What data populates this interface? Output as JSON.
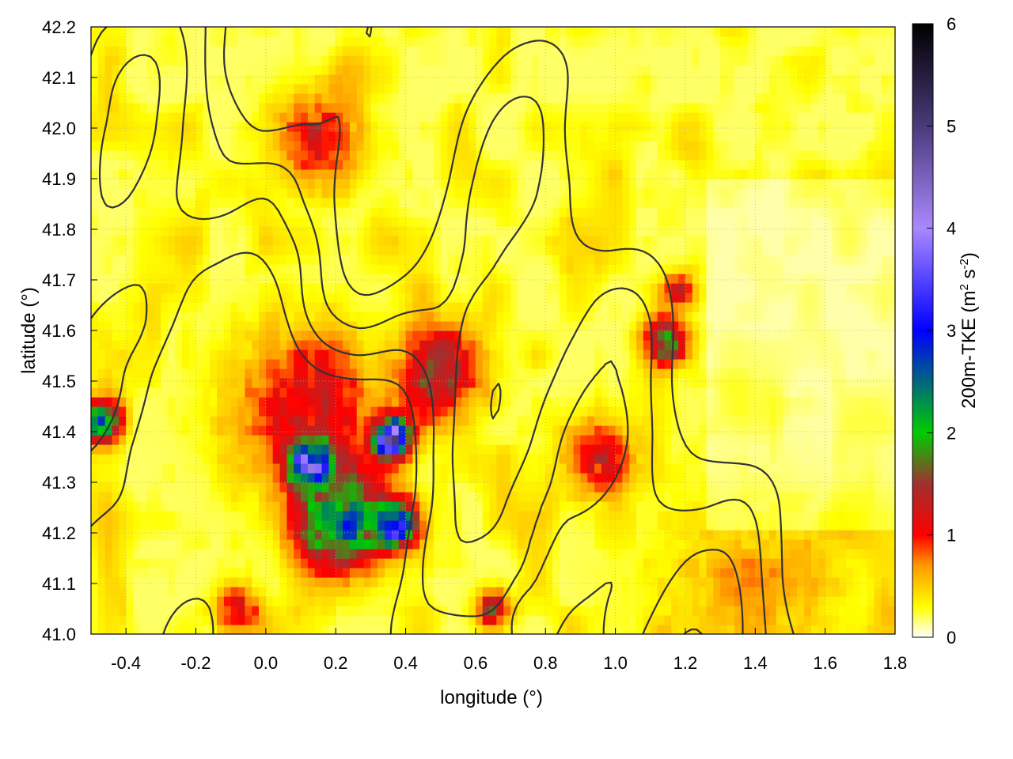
{
  "chart_data": {
    "type": "heatmap",
    "title": "",
    "xlabel": "longitude (°)",
    "ylabel": "latitude (°)",
    "colorbar_label": "200m-TKE (m² s⁻²)",
    "colorbar_label_parts": {
      "base": "200m-TKE (m",
      "sup1": "2",
      "mid": " s",
      "sup2": "-2",
      "end": ")"
    },
    "xlim": [
      -0.5,
      1.8
    ],
    "ylim": [
      41.0,
      42.2
    ],
    "zlim": [
      0,
      6
    ],
    "x_ticks": [
      "-0.4",
      "-0.2",
      "0.0",
      "0.2",
      "0.4",
      "0.6",
      "0.8",
      "1.0",
      "1.2",
      "1.4",
      "1.6",
      "1.8"
    ],
    "x_tick_values": [
      -0.4,
      -0.2,
      0.0,
      0.2,
      0.4,
      0.6,
      0.8,
      1.0,
      1.2,
      1.4,
      1.6,
      1.8
    ],
    "y_ticks": [
      "41.0",
      "41.1",
      "41.2",
      "41.3",
      "41.4",
      "41.5",
      "41.6",
      "41.7",
      "41.8",
      "41.9",
      "42.0",
      "42.1",
      "42.2"
    ],
    "y_tick_values": [
      41.0,
      41.1,
      41.2,
      41.3,
      41.4,
      41.5,
      41.6,
      41.7,
      41.8,
      41.9,
      42.0,
      42.1,
      42.2
    ],
    "colorbar_ticks": [
      "0",
      "1",
      "2",
      "3",
      "4",
      "5",
      "6"
    ],
    "colorbar_tick_values": [
      0,
      1,
      2,
      3,
      4,
      5,
      6
    ],
    "grid": true,
    "contours": "terrain elevation isolines (black)",
    "colormap": [
      {
        "value": 0.0,
        "color": "#ffffff"
      },
      {
        "value": 0.3,
        "color": "#ffff00"
      },
      {
        "value": 0.7,
        "color": "#ff9900"
      },
      {
        "value": 1.0,
        "color": "#ff0000"
      },
      {
        "value": 1.5,
        "color": "#a03030"
      },
      {
        "value": 2.0,
        "color": "#00cc00"
      },
      {
        "value": 3.0,
        "color": "#0000ff"
      },
      {
        "value": 4.0,
        "color": "#aa88ff"
      },
      {
        "value": 5.0,
        "color": "#4a3a7a"
      },
      {
        "value": 6.0,
        "color": "#000000"
      }
    ],
    "hotspots": [
      {
        "lon": 0.22,
        "lat": 41.22,
        "value": 2.2,
        "spread": 0.12
      },
      {
        "lon": 0.12,
        "lat": 41.34,
        "value": 3.0,
        "spread": 0.06
      },
      {
        "lon": 0.36,
        "lat": 41.39,
        "value": 3.8,
        "spread": 0.05
      },
      {
        "lon": 0.37,
        "lat": 41.22,
        "value": 2.6,
        "spread": 0.06
      },
      {
        "lon": 0.5,
        "lat": 41.52,
        "value": 1.2,
        "spread": 0.12
      },
      {
        "lon": -0.47,
        "lat": 41.42,
        "value": 2.4,
        "spread": 0.05
      },
      {
        "lon": 0.15,
        "lat": 41.98,
        "value": 1.0,
        "spread": 0.12
      },
      {
        "lon": 1.15,
        "lat": 41.58,
        "value": 1.6,
        "spread": 0.06
      },
      {
        "lon": 1.18,
        "lat": 41.68,
        "value": 1.0,
        "spread": 0.05
      },
      {
        "lon": 0.95,
        "lat": 41.35,
        "value": 1.0,
        "spread": 0.1
      },
      {
        "lon": 0.1,
        "lat": 41.45,
        "value": 0.9,
        "spread": 0.2
      },
      {
        "lon": 0.65,
        "lat": 41.05,
        "value": 1.2,
        "spread": 0.05
      },
      {
        "lon": -0.08,
        "lat": 41.05,
        "value": 1.0,
        "spread": 0.06
      },
      {
        "lon": 1.4,
        "lat": 41.08,
        "value": 0.35,
        "spread": 0.3
      }
    ]
  }
}
